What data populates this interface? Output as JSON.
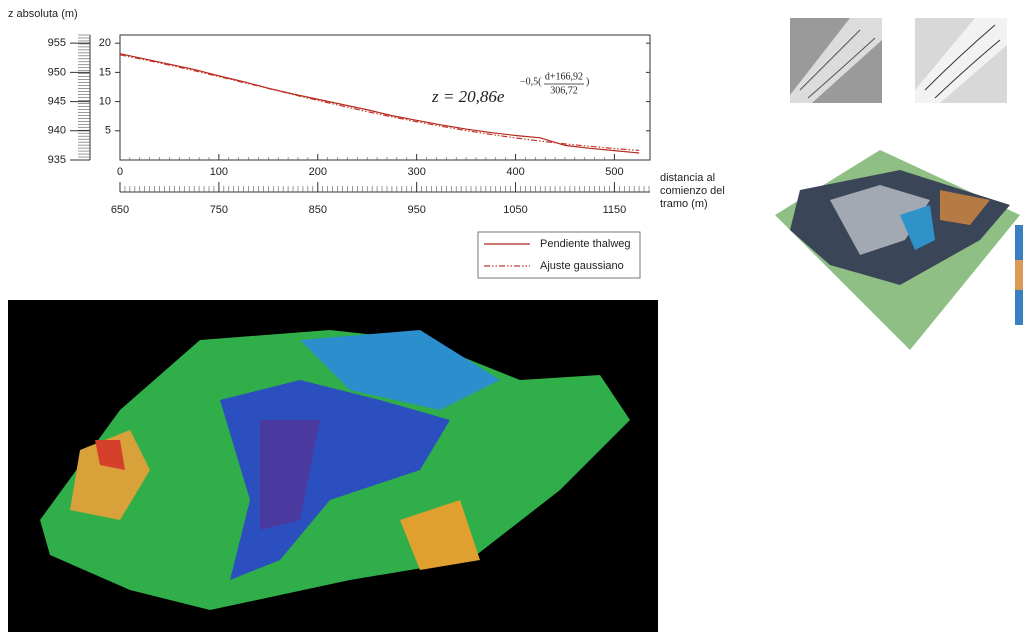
{
  "chart_data": {
    "type": "line",
    "ylabel": "z absoluta (m)",
    "xlabel": "distancia al comienzo del tramo (m)",
    "equation": {
      "lhs": "z = 20,86e",
      "exponent": "−0,5(",
      "numerator": "d+166,92",
      "denominator": "306,72",
      "close": ")"
    },
    "x": [
      0,
      25,
      50,
      75,
      100,
      125,
      150,
      175,
      200,
      225,
      250,
      275,
      300,
      325,
      350,
      375,
      400,
      425,
      450,
      475,
      500,
      525
    ],
    "series": [
      {
        "name": "Pendiente thalweg",
        "color": "#b5281e",
        "dash": "solid",
        "values": [
          18.2,
          17.3,
          16.4,
          15.5,
          14.4,
          13.4,
          12.3,
          11.3,
          10.4,
          9.5,
          8.6,
          7.6,
          6.8,
          6.0,
          5.3,
          4.7,
          4.2,
          3.8,
          2.5,
          2.0,
          1.6,
          1.2
        ]
      },
      {
        "name": "Ajuste gaussiano",
        "color": "#c0392b",
        "dash": "dashdot",
        "values": [
          17.99,
          17.15,
          16.24,
          15.29,
          14.28,
          13.26,
          12.24,
          11.21,
          10.2,
          9.23,
          8.28,
          7.39,
          6.55,
          5.77,
          5.04,
          4.38,
          3.78,
          3.24,
          2.76,
          2.34,
          1.96,
          1.64
        ]
      }
    ],
    "xlim": [
      0,
      536
    ],
    "xticks": [
      0,
      100,
      200,
      300,
      400,
      500
    ],
    "x2lim": [
      650,
      1186
    ],
    "x2ticks": [
      650,
      750,
      850,
      950,
      1050,
      1150
    ],
    "ylim": [
      0,
      21.4
    ],
    "yticks": [
      5,
      10,
      15,
      20
    ],
    "y2lim": [
      935,
      956.4
    ],
    "y2ticks": [
      935,
      940,
      945,
      950,
      955
    ]
  }
}
